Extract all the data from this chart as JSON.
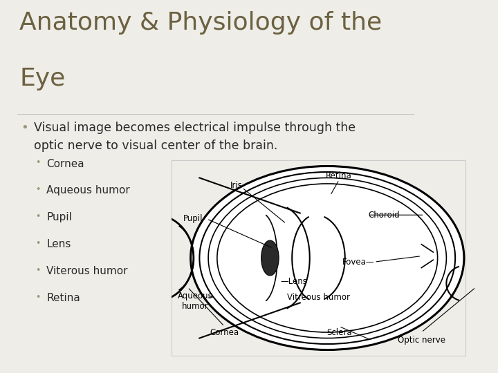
{
  "title_line1": "Anatomy & Physiology of the",
  "title_line2": "Eye",
  "title_color": "#6b6040",
  "title_fontsize": 26,
  "bg_color_main": "#eeede8",
  "bg_color_right_top": "#6b6347",
  "bg_color_right_bot": "#b0a882",
  "bg_color_right_foot": "#5a5238",
  "bullet1_line1": "Visual image becomes electrical impulse through the",
  "bullet1_line2": "optic nerve to visual center of the brain.",
  "bullet1_color": "#2a2a2a",
  "bullet1_fontsize": 12.5,
  "sub_bullets": [
    "Cornea",
    "Aqueous humor",
    "Pupil",
    "Lens",
    "Viterous humor",
    "Retina"
  ],
  "sub_bullet_color": "#2a2a2a",
  "sub_bullet_dot_color": "#9a9878",
  "sub_bullet_fontsize": 11,
  "diag_bg": "white",
  "diag_border": "#cccccc"
}
